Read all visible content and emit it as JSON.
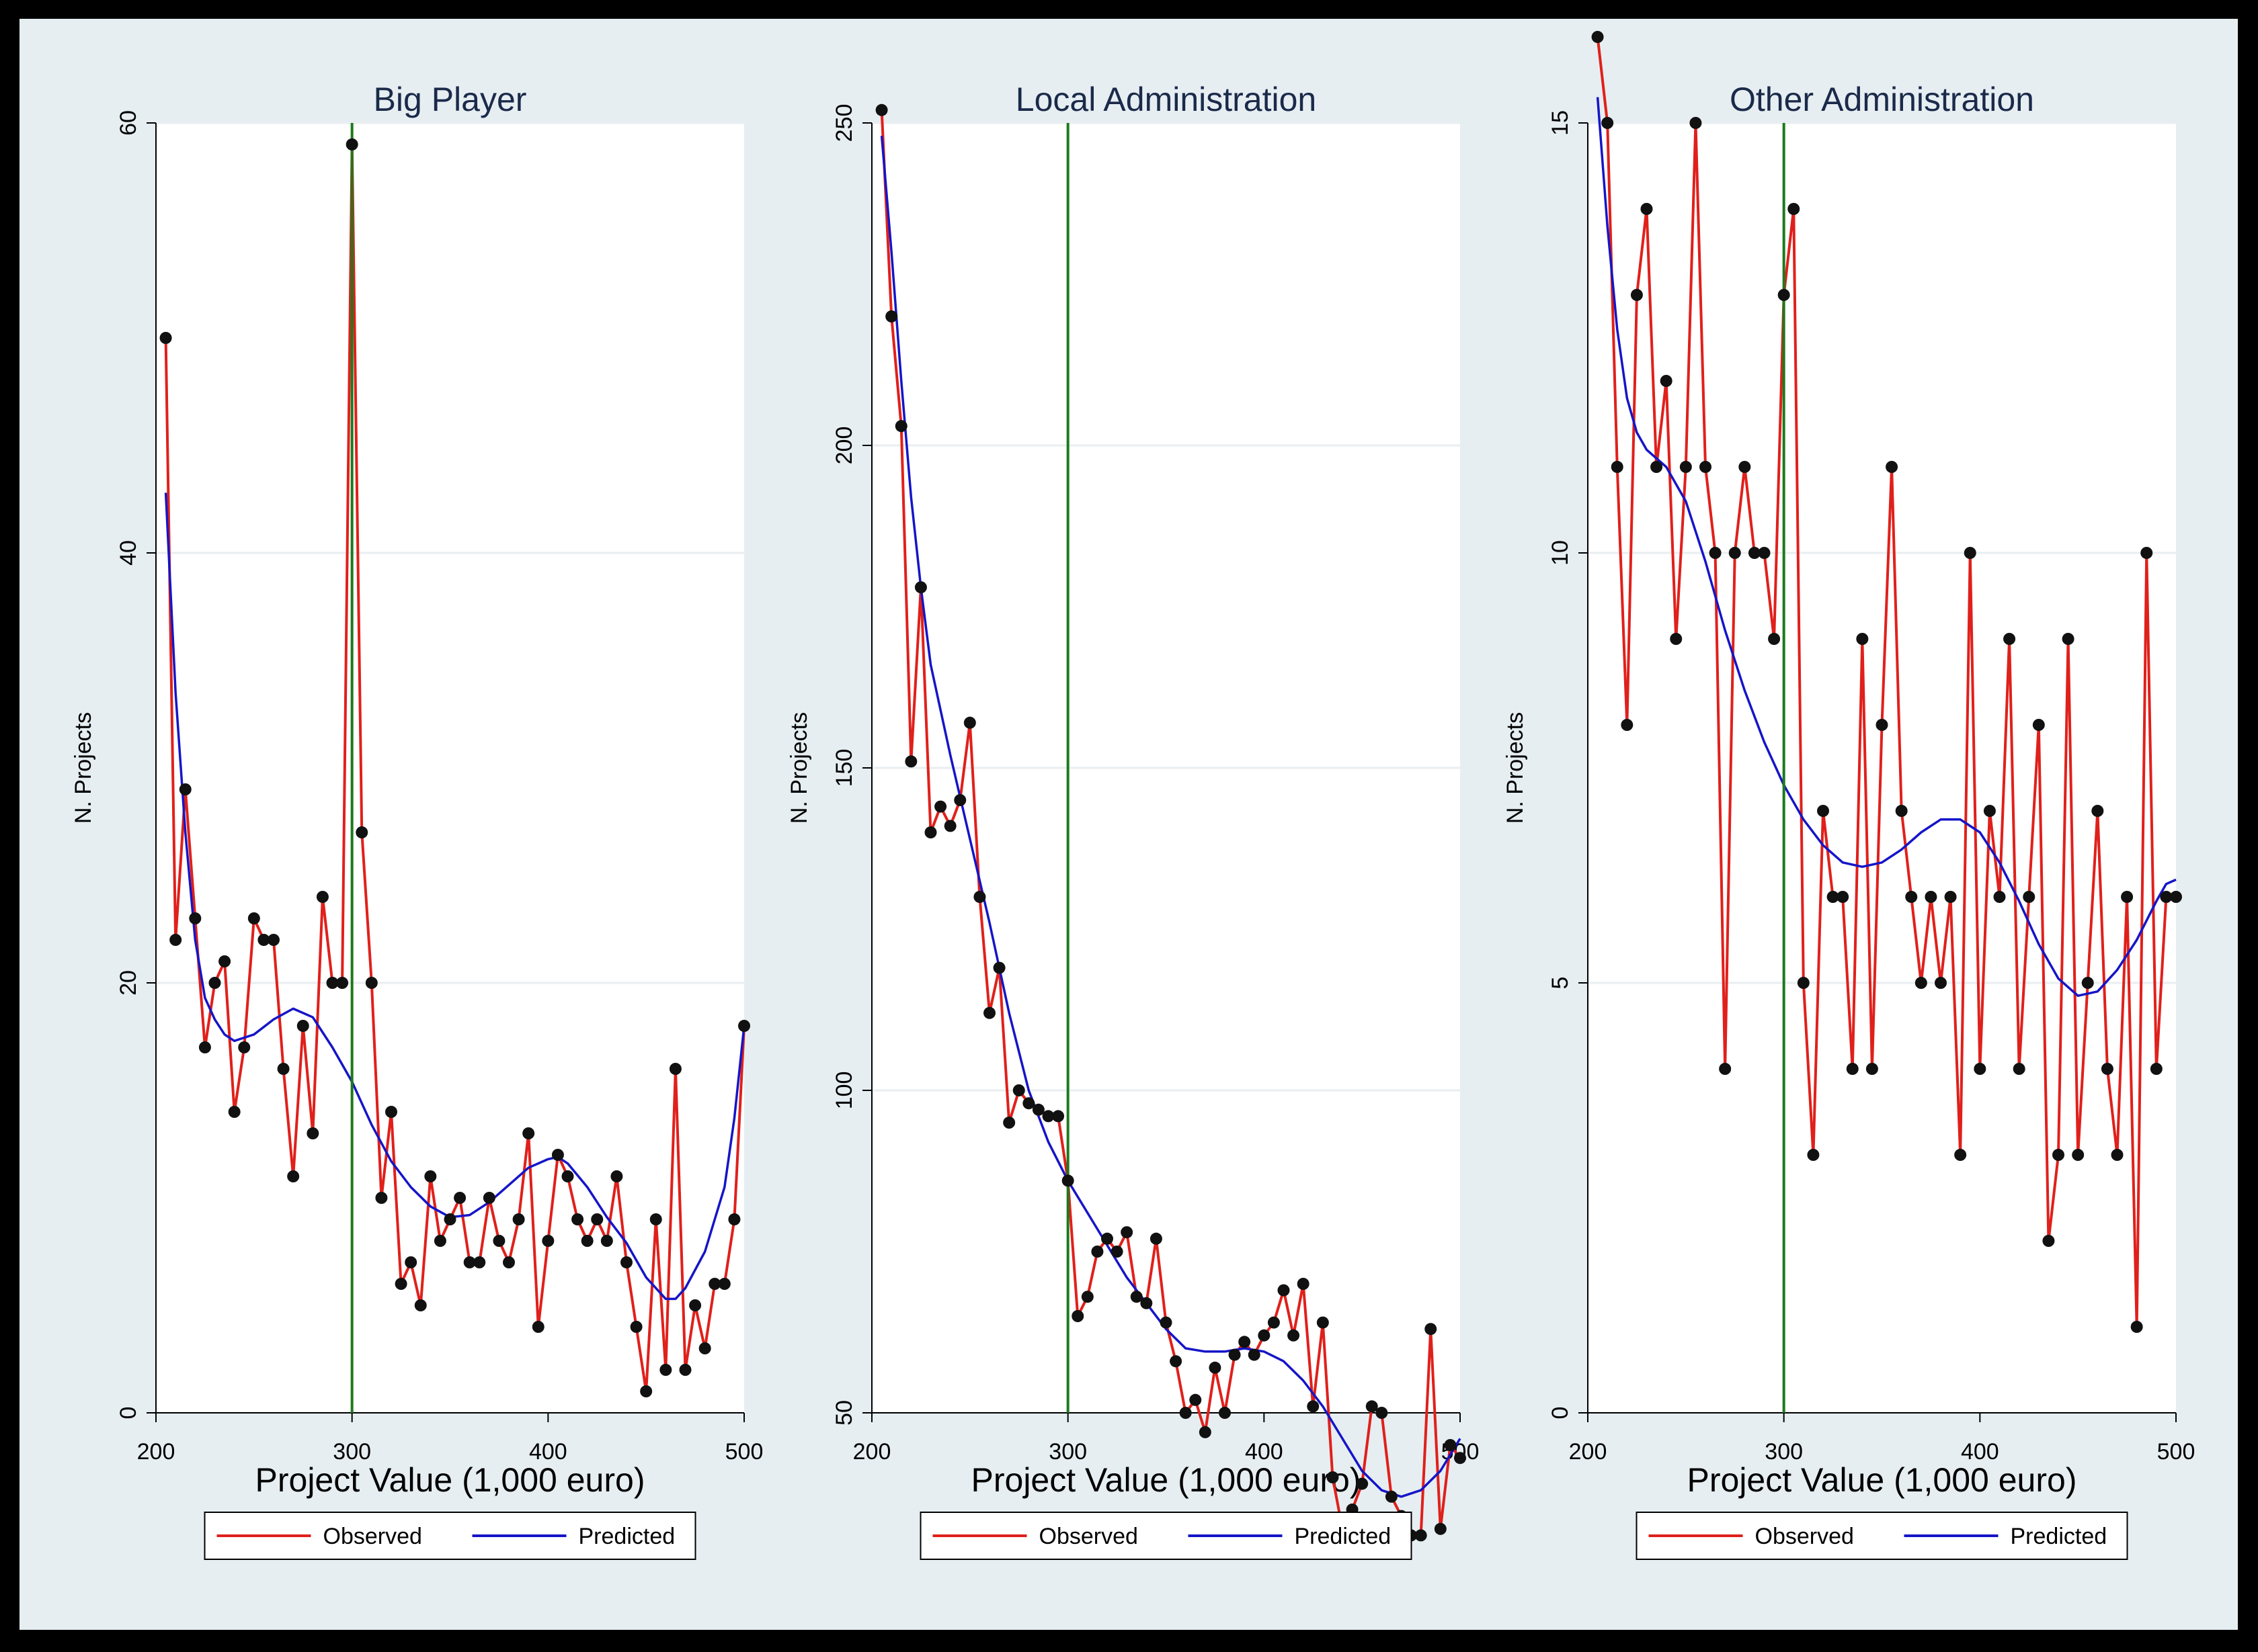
{
  "colors": {
    "frame": "#000000",
    "panel_bg": "#e6eef2",
    "plot_bg": "#ffffff",
    "grid": "#e9eef1",
    "observed": "#e0201b",
    "predicted": "#1515c8",
    "marker": "#111111",
    "cutoff": "#1c7a1c",
    "title": "#1b2a4a"
  },
  "chart_data": [
    {
      "type": "line",
      "title": "Big Player",
      "xlabel": "Project Value (1,000 euro)",
      "ylabel": "N. Projects",
      "xlim": [
        200,
        500
      ],
      "ylim": [
        0,
        60
      ],
      "xticks": [
        200,
        300,
        400,
        500
      ],
      "yticks": [
        0,
        20,
        40,
        60
      ],
      "cutoff_x": 300,
      "grid": true,
      "legend": {
        "position": "bottom",
        "entries": [
          "Observed",
          "Predicted"
        ]
      },
      "series": [
        {
          "name": "Observed",
          "style": "line+markers",
          "x": [
            205,
            210,
            215,
            220,
            225,
            230,
            235,
            240,
            245,
            250,
            255,
            260,
            265,
            270,
            275,
            280,
            285,
            290,
            295,
            300,
            305,
            310,
            315,
            320,
            325,
            330,
            335,
            340,
            345,
            350,
            355,
            360,
            365,
            370,
            375,
            380,
            385,
            390,
            395,
            400,
            405,
            410,
            415,
            420,
            425,
            430,
            435,
            440,
            445,
            450,
            455,
            460,
            465,
            470,
            475,
            480,
            485,
            490,
            495,
            500
          ],
          "y": [
            50,
            22,
            29,
            23,
            17,
            20,
            21,
            14,
            17,
            23,
            22,
            22,
            16,
            11,
            18,
            13,
            24,
            20,
            20,
            59,
            27,
            20,
            10,
            14,
            6,
            7,
            5,
            11,
            8,
            9,
            10,
            7,
            7,
            10,
            8,
            7,
            9,
            13,
            4,
            8,
            12,
            11,
            9,
            8,
            9,
            8,
            11,
            7,
            4,
            1,
            9,
            2,
            16,
            2,
            5,
            3,
            6,
            6,
            9,
            18
          ]
        },
        {
          "name": "Predicted",
          "style": "line",
          "x": [
            205,
            210,
            215,
            220,
            225,
            230,
            235,
            240,
            250,
            260,
            270,
            280,
            290,
            300,
            310,
            320,
            330,
            340,
            350,
            360,
            370,
            380,
            390,
            400,
            405,
            410,
            420,
            430,
            440,
            450,
            460,
            465,
            470,
            480,
            490,
            495,
            500
          ],
          "y": [
            42.8,
            33.5,
            27,
            22,
            19.3,
            18.3,
            17.6,
            17.3,
            17.6,
            18.3,
            18.8,
            18.4,
            17,
            15.4,
            13.4,
            11.7,
            10.5,
            9.6,
            9.1,
            9.2,
            9.8,
            10.6,
            11.4,
            11.8,
            11.9,
            11.6,
            10.5,
            9.1,
            7.9,
            6.3,
            5.3,
            5.3,
            5.8,
            7.5,
            10.5,
            13.7,
            18
          ]
        }
      ]
    },
    {
      "type": "line",
      "title": "Local Administration",
      "xlabel": "Project Value (1,000 euro)",
      "ylabel": "N. Projects",
      "xlim": [
        200,
        500
      ],
      "ylim": [
        50,
        250
      ],
      "xticks": [
        200,
        300,
        400,
        500
      ],
      "yticks": [
        50,
        100,
        150,
        200,
        250
      ],
      "cutoff_x": 300,
      "grid": true,
      "legend": {
        "position": "bottom",
        "entries": [
          "Observed",
          "Predicted"
        ]
      },
      "series": [
        {
          "name": "Observed",
          "style": "line+markers",
          "x": [
            205,
            210,
            215,
            220,
            225,
            230,
            235,
            240,
            245,
            250,
            255,
            260,
            265,
            270,
            275,
            280,
            285,
            290,
            295,
            300,
            305,
            310,
            315,
            320,
            325,
            330,
            335,
            340,
            345,
            350,
            355,
            360,
            365,
            370,
            375,
            380,
            385,
            390,
            395,
            400,
            405,
            410,
            415,
            420,
            425,
            430,
            435,
            440,
            445,
            450,
            455,
            460,
            465,
            470,
            475,
            480,
            485,
            490,
            495,
            500
          ],
          "y": [
            252,
            220,
            203,
            151,
            178,
            140,
            144,
            141,
            145,
            157,
            130,
            112,
            119,
            95,
            100,
            98,
            97,
            96,
            96,
            86,
            65,
            68,
            75,
            77,
            75,
            78,
            68,
            67,
            77,
            64,
            58,
            50,
            52,
            47,
            57,
            50,
            59,
            61,
            59,
            62,
            64,
            69,
            62,
            70,
            51,
            64,
            40,
            32,
            35,
            39,
            51,
            50,
            37,
            34,
            31,
            31,
            63,
            32,
            45,
            43
          ]
        },
        {
          "name": "Predicted",
          "style": "line",
          "x": [
            205,
            210,
            215,
            220,
            225,
            230,
            240,
            250,
            260,
            270,
            280,
            290,
            300,
            310,
            320,
            330,
            340,
            350,
            360,
            370,
            380,
            390,
            400,
            410,
            420,
            430,
            440,
            450,
            460,
            470,
            480,
            490,
            500
          ],
          "y": [
            248,
            230,
            210,
            192,
            178,
            166,
            152,
            139,
            126,
            112,
            100,
            92,
            86,
            81,
            76,
            71,
            67,
            63,
            60,
            59.5,
            59.5,
            60,
            59.5,
            58,
            55,
            51,
            46,
            41,
            38,
            37,
            38,
            41,
            46
          ]
        }
      ]
    },
    {
      "type": "line",
      "title": "Other Administration",
      "xlabel": "Project Value (1,000 euro)",
      "ylabel": "N. Projects",
      "xlim": [
        200,
        500
      ],
      "ylim": [
        0,
        15
      ],
      "xticks": [
        200,
        300,
        400,
        500
      ],
      "yticks": [
        0,
        5,
        10,
        15
      ],
      "cutoff_x": 300,
      "grid": true,
      "legend": {
        "position": "bottom",
        "entries": [
          "Observed",
          "Predicted"
        ]
      },
      "series": [
        {
          "name": "Observed",
          "style": "line+markers",
          "x": [
            205,
            210,
            215,
            220,
            225,
            230,
            235,
            240,
            245,
            250,
            255,
            260,
            265,
            270,
            275,
            280,
            285,
            290,
            295,
            300,
            305,
            310,
            315,
            320,
            325,
            330,
            335,
            340,
            345,
            350,
            355,
            360,
            365,
            370,
            375,
            380,
            385,
            390,
            395,
            400,
            405,
            410,
            415,
            420,
            425,
            430,
            435,
            440,
            445,
            450,
            455,
            460,
            465,
            470,
            475,
            480,
            485,
            490,
            495,
            500
          ],
          "y": [
            16,
            15,
            11,
            8,
            13,
            14,
            11,
            12,
            9,
            11,
            15,
            11,
            10,
            4,
            10,
            11,
            10,
            10,
            9,
            13,
            14,
            5,
            3,
            7,
            6,
            6,
            4,
            9,
            4,
            8,
            11,
            7,
            6,
            5,
            6,
            5,
            6,
            3,
            10,
            4,
            7,
            6,
            9,
            4,
            6,
            8,
            2,
            3,
            9,
            3,
            5,
            7,
            4,
            3,
            6,
            1,
            10,
            4,
            6,
            6
          ]
        },
        {
          "name": "Predicted",
          "style": "line",
          "x": [
            205,
            210,
            215,
            220,
            225,
            230,
            240,
            250,
            260,
            270,
            280,
            290,
            300,
            310,
            320,
            330,
            340,
            350,
            360,
            370,
            380,
            390,
            400,
            410,
            420,
            430,
            440,
            450,
            460,
            470,
            480,
            490,
            495,
            500
          ],
          "y": [
            15.3,
            13.8,
            12.6,
            11.8,
            11.4,
            11.2,
            11,
            10.6,
            9.9,
            9.1,
            8.4,
            7.8,
            7.3,
            6.9,
            6.6,
            6.4,
            6.35,
            6.4,
            6.55,
            6.75,
            6.9,
            6.9,
            6.75,
            6.4,
            5.95,
            5.45,
            5.05,
            4.85,
            4.9,
            5.15,
            5.5,
            5.95,
            6.15,
            6.2
          ]
        }
      ]
    }
  ]
}
